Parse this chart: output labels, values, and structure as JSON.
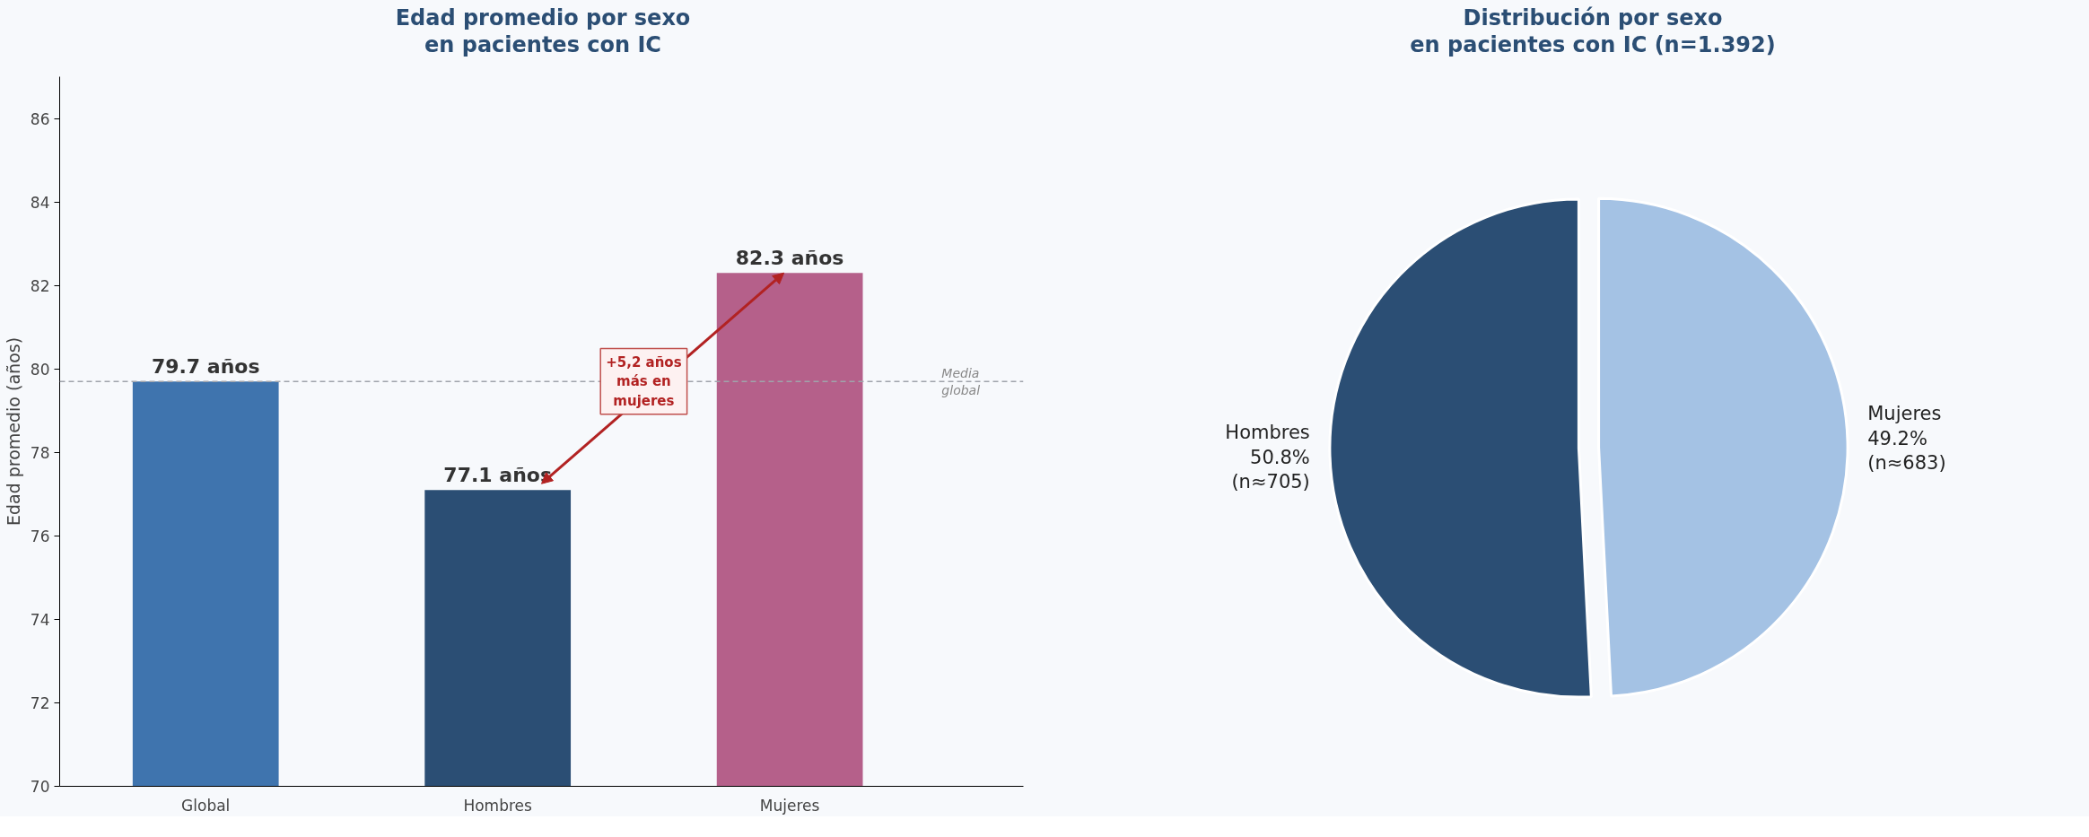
{
  "chart_data": [
    {
      "type": "bar",
      "title": "Edad promedio por sexo\nen pacientes con IC",
      "ylabel": "Edad promedio (años)",
      "categories": [
        "Global",
        "Hombres",
        "Mujeres"
      ],
      "values": [
        79.7,
        77.1,
        82.3
      ],
      "colors": [
        "#3f74ae",
        "#2b4e74",
        "#b5608a"
      ],
      "value_labels": [
        "79.7 años",
        "77.1 años",
        "82.3 años"
      ],
      "ylim": [
        70,
        87
      ],
      "yticks": [
        70,
        72,
        74,
        76,
        78,
        80,
        82,
        84,
        86
      ],
      "ref_lines": [
        {
          "axis": "y",
          "value": 79.7,
          "label": "Media global",
          "color": "#a0a4ab",
          "line_style": "dashed"
        }
      ],
      "annotations": [
        "+5,2 años\nmás en\nmujeres"
      ],
      "grid": false
    },
    {
      "type": "pie",
      "title": "Distribución por sexo\nen pacientes con IC (n=1.392)",
      "categories": [
        "Hombres",
        "Mujeres"
      ],
      "values": [
        50.8,
        49.2
      ],
      "colors": [
        "#2b4e74",
        "#a4c2e4"
      ],
      "value_labels": [
        "50.8%\n(n≈705)",
        "49.2%\n(n≈683)"
      ]
    }
  ]
}
